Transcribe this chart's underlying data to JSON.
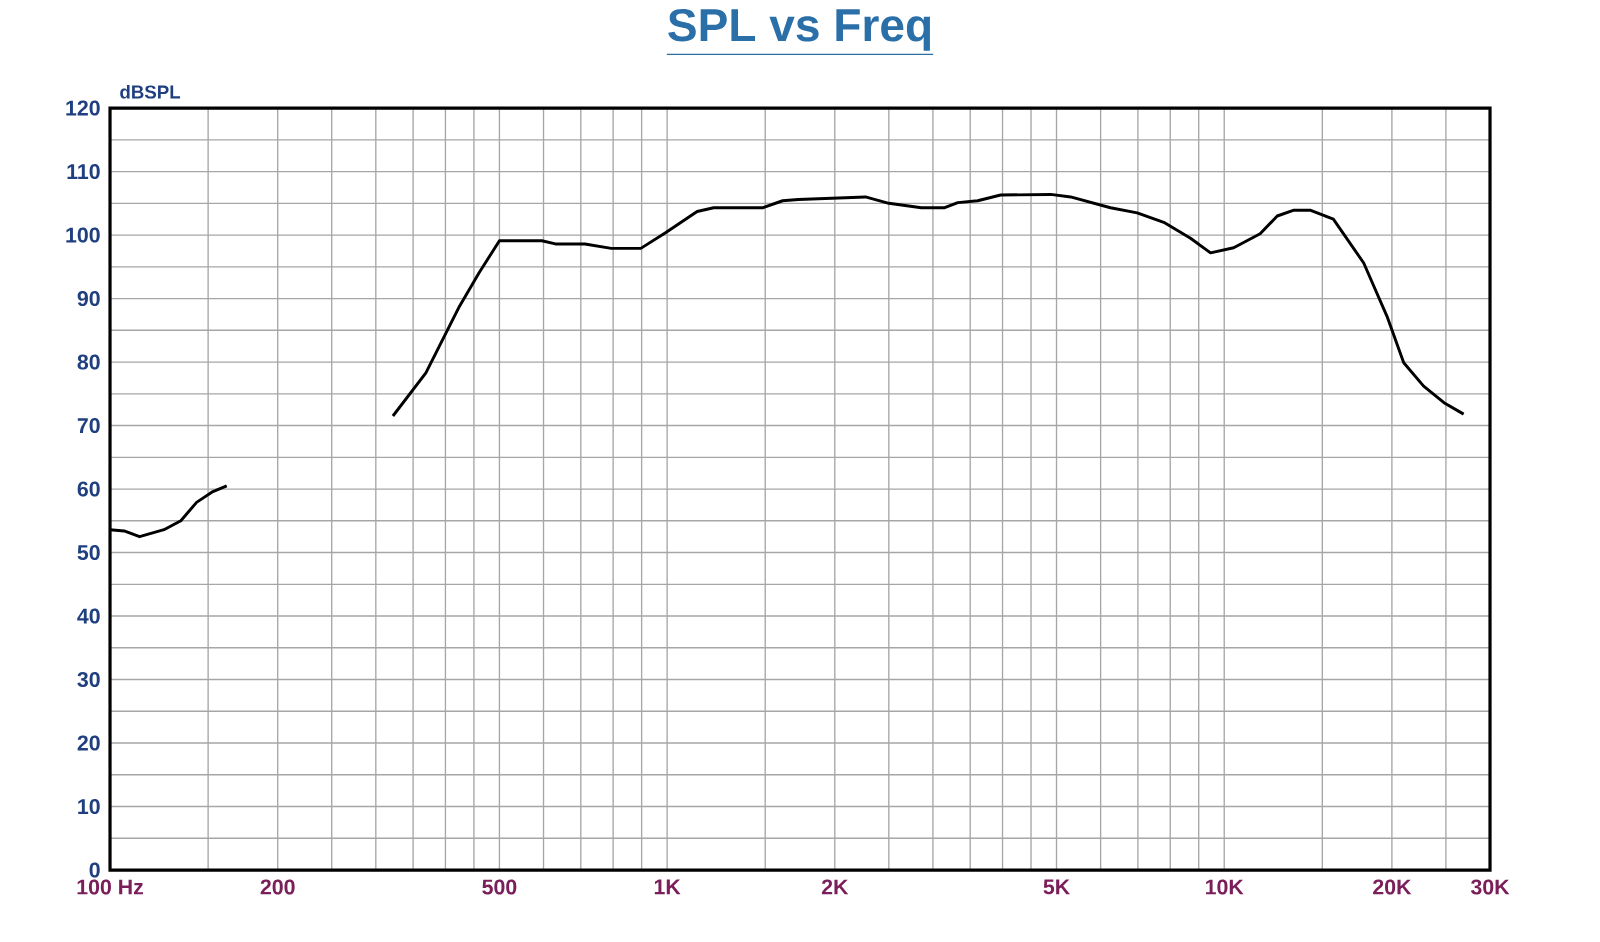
{
  "chart_data": {
    "type": "line",
    "title": "SPL vs Freq",
    "ylabel": "dBSPL",
    "x": [
      100,
      106,
      113,
      125,
      134,
      143,
      153,
      162,
      230,
      322,
      369,
      424,
      460,
      500,
      596,
      630,
      712,
      794,
      897,
      995,
      1132,
      1212,
      1487,
      1612,
      1720,
      2270,
      2500,
      2860,
      3150,
      3325,
      3610,
      3970,
      4880,
      5300,
      6250,
      6980,
      7790,
      8700,
      9450,
      10400,
      11600,
      12450,
      13300,
      14300,
      15700,
      17800,
      19600,
      21000,
      22800,
      24800,
      26900
    ],
    "values": [
      53.6,
      53.4,
      52.5,
      53.6,
      55.0,
      57.9,
      59.6,
      60.5,
      null,
      71.5,
      78.3,
      88.8,
      94.1,
      99.1,
      99.1,
      98.6,
      98.6,
      97.9,
      97.9,
      100.4,
      103.7,
      104.3,
      104.3,
      105.4,
      105.6,
      106.0,
      105.0,
      104.3,
      104.3,
      105.1,
      105.4,
      106.3,
      106.4,
      106.0,
      104.3,
      103.5,
      102.0,
      99.5,
      97.2,
      98.0,
      100.2,
      103.0,
      103.9,
      103.9,
      102.5,
      95.6,
      87.2,
      79.9,
      76.2,
      73.6,
      71.8
    ],
    "color": "#000000",
    "log": "x",
    "grid": true,
    "marker": "none",
    "line_style": "solid",
    "xlim": [
      100,
      30000
    ],
    "ylim": [
      0,
      120
    ],
    "xticks": [
      {
        "value": 100,
        "label": "100  Hz"
      },
      {
        "value": 150,
        "label": null
      },
      {
        "value": 200,
        "label": "200"
      },
      {
        "value": 250,
        "label": null
      },
      {
        "value": 300,
        "label": null
      },
      {
        "value": 350,
        "label": null
      },
      {
        "value": 400,
        "label": null
      },
      {
        "value": 450,
        "label": null
      },
      {
        "value": 500,
        "label": "500"
      },
      {
        "value": 600,
        "label": null
      },
      {
        "value": 700,
        "label": null
      },
      {
        "value": 800,
        "label": null
      },
      {
        "value": 900,
        "label": null
      },
      {
        "value": 1000,
        "label": "1K"
      },
      {
        "value": 1500,
        "label": null
      },
      {
        "value": 2000,
        "label": "2K"
      },
      {
        "value": 2500,
        "label": null
      },
      {
        "value": 3000,
        "label": null
      },
      {
        "value": 3500,
        "label": null
      },
      {
        "value": 4000,
        "label": null
      },
      {
        "value": 4500,
        "label": null
      },
      {
        "value": 5000,
        "label": "5K"
      },
      {
        "value": 6000,
        "label": null
      },
      {
        "value": 7000,
        "label": null
      },
      {
        "value": 8000,
        "label": null
      },
      {
        "value": 9000,
        "label": null
      },
      {
        "value": 10000,
        "label": "10K"
      },
      {
        "value": 15000,
        "label": null
      },
      {
        "value": 20000,
        "label": "20K"
      },
      {
        "value": 25000,
        "label": null
      },
      {
        "value": 30000,
        "label": "30K"
      }
    ],
    "yticks": [
      0,
      {
        "value": 5,
        "label": null
      },
      10,
      {
        "value": 15,
        "label": null
      },
      20,
      {
        "value": 25,
        "label": null
      },
      30,
      {
        "value": 35,
        "label": null
      },
      40,
      {
        "value": 45,
        "label": null
      },
      50,
      {
        "value": 55,
        "label": null
      },
      60,
      {
        "value": 65,
        "label": null
      },
      70,
      {
        "value": 75,
        "label": null
      },
      80,
      {
        "value": 85,
        "label": null
      },
      90,
      {
        "value": 95,
        "label": null
      },
      100,
      {
        "value": 105,
        "label": null
      },
      110,
      {
        "value": 115,
        "label": null
      },
      120
    ]
  }
}
